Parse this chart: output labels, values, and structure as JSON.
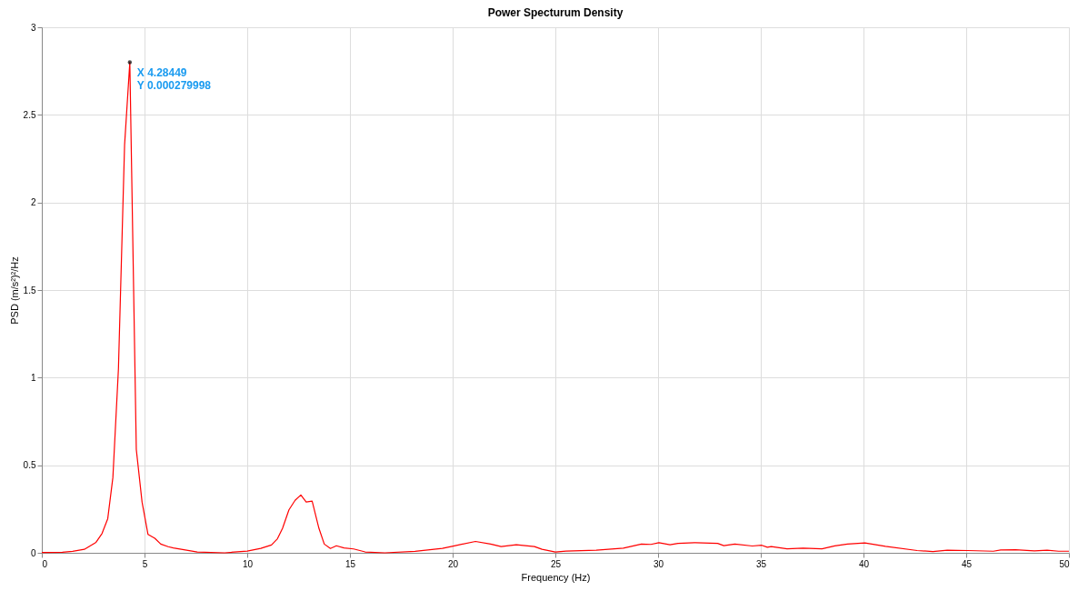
{
  "chart_data": {
    "type": "line",
    "title": "Power Specturum Density",
    "xlabel": "Frequency (Hz)",
    "ylabel": "PSD (m/s²)²/Hz",
    "xlim": [
      0,
      50
    ],
    "xticks": [
      0,
      5,
      10,
      15,
      20,
      25,
      30,
      35,
      40,
      45,
      50
    ],
    "ylim": [
      0,
      3
    ],
    "yticks": [
      0,
      0.5,
      1,
      1.5,
      2,
      2.5,
      3
    ],
    "grid": true,
    "annotations": [
      {
        "text": "X 4.28449\nY 0.000279998",
        "x": 4.28449,
        "y": 2.8
      }
    ],
    "series": [
      {
        "color": "#ff0000",
        "x": [
          0,
          1,
          1.5,
          2.07,
          2.64,
          2.93,
          3.21,
          3.46,
          3.73,
          4.03,
          4.28449,
          4.6,
          4.88,
          5.17,
          5.5,
          5.79,
          6.15,
          6.4,
          7.57,
          8.9,
          10.0,
          10.66,
          11.18,
          11.47,
          11.72,
          12.03,
          12.33,
          12.61,
          12.87,
          13.16,
          13.49,
          13.75,
          14.05,
          14.34,
          14.71,
          15.18,
          15.74,
          16.7,
          18.17,
          19.5,
          20.08,
          21.11,
          21.85,
          22.36,
          23.1,
          23.98,
          24.35,
          25.0,
          25.52,
          26.99,
          28.31,
          29.19,
          29.65,
          30.04,
          30.58,
          30.97,
          31.82,
          32.9,
          33.2,
          33.74,
          34.59,
          35.05,
          35.32,
          35.51,
          36.28,
          37.06,
          37.98,
          38.6,
          39.22,
          40.07,
          41.07,
          42.61,
          43.38,
          44.08,
          45.09,
          46.32,
          46.68,
          47.4,
          48.32,
          48.94,
          49.5,
          50
        ],
        "values": [
          0.002,
          0.003,
          0.008,
          0.02,
          0.06,
          0.11,
          0.195,
          0.43,
          1.05,
          2.33,
          2.8,
          0.59,
          0.29,
          0.105,
          0.083,
          0.05,
          0.035,
          0.028,
          0.005,
          0.0,
          0.01,
          0.025,
          0.045,
          0.08,
          0.14,
          0.245,
          0.3,
          0.33,
          0.29,
          0.295,
          0.14,
          0.05,
          0.025,
          0.04,
          0.028,
          0.022,
          0.005,
          0.0,
          0.008,
          0.025,
          0.04,
          0.065,
          0.05,
          0.036,
          0.046,
          0.036,
          0.02,
          0.005,
          0.01,
          0.015,
          0.027,
          0.05,
          0.048,
          0.058,
          0.046,
          0.054,
          0.058,
          0.054,
          0.041,
          0.05,
          0.039,
          0.043,
          0.032,
          0.036,
          0.023,
          0.027,
          0.023,
          0.04,
          0.05,
          0.056,
          0.037,
          0.013,
          0.007,
          0.015,
          0.013,
          0.009,
          0.016,
          0.018,
          0.011,
          0.015,
          0.009,
          0.009
        ]
      }
    ]
  }
}
